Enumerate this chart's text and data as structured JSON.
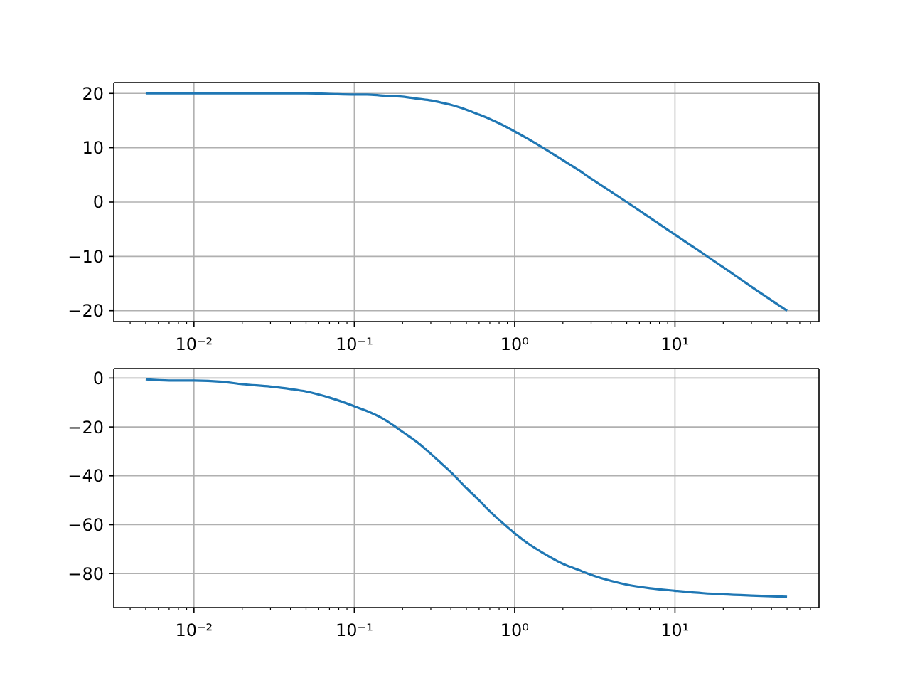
{
  "chart_data": [
    {
      "type": "line",
      "x": [
        0.005,
        0.007,
        0.01,
        0.015,
        0.02,
        0.03,
        0.04,
        0.05,
        0.07,
        0.1,
        0.12,
        0.15,
        0.2,
        0.25,
        0.3,
        0.35,
        0.4,
        0.5,
        0.6,
        0.7,
        0.8,
        1,
        1.2,
        1.5,
        2,
        2.5,
        3,
        4,
        5,
        7,
        10,
        15,
        20,
        30,
        50
      ],
      "series": [
        {
          "color": "#1f77b4",
          "values": [
            20,
            20,
            20,
            20,
            20,
            20,
            20,
            20,
            19.9,
            19.8,
            19.8,
            19.6,
            19.4,
            19,
            18.7,
            18.3,
            17.9,
            17,
            16.1,
            15.3,
            14.5,
            13,
            11.7,
            10,
            7.7,
            5.9,
            4.3,
            1.9,
            0,
            -2.9,
            -6,
            -9.5,
            -12,
            -15.6,
            -20
          ]
        }
      ],
      "log": "x",
      "xlim": [
        0.00316,
        79.1
      ],
      "xticks": [
        {
          "value": 0.004,
          "label": null
        },
        {
          "value": 0.005,
          "label": null
        },
        {
          "value": 0.006,
          "label": null
        },
        {
          "value": 0.007,
          "label": null
        },
        {
          "value": 0.008,
          "label": null
        },
        {
          "value": 0.009,
          "label": null
        },
        {
          "value": 0.01,
          "label": "10⁻²"
        },
        {
          "value": 0.02,
          "label": null
        },
        {
          "value": 0.03,
          "label": null
        },
        {
          "value": 0.04,
          "label": null
        },
        {
          "value": 0.05,
          "label": null
        },
        {
          "value": 0.06,
          "label": null
        },
        {
          "value": 0.07,
          "label": null
        },
        {
          "value": 0.08,
          "label": null
        },
        {
          "value": 0.09,
          "label": null
        },
        {
          "value": 0.1,
          "label": "10⁻¹"
        },
        {
          "value": 0.2,
          "label": null
        },
        {
          "value": 0.3,
          "label": null
        },
        {
          "value": 0.4,
          "label": null
        },
        {
          "value": 0.5,
          "label": null
        },
        {
          "value": 0.6,
          "label": null
        },
        {
          "value": 0.7,
          "label": null
        },
        {
          "value": 0.8,
          "label": null
        },
        {
          "value": 0.9,
          "label": null
        },
        {
          "value": 1,
          "label": "10⁰"
        },
        {
          "value": 2,
          "label": null
        },
        {
          "value": 3,
          "label": null
        },
        {
          "value": 4,
          "label": null
        },
        {
          "value": 5,
          "label": null
        },
        {
          "value": 6,
          "label": null
        },
        {
          "value": 7,
          "label": null
        },
        {
          "value": 8,
          "label": null
        },
        {
          "value": 9,
          "label": null
        },
        {
          "value": 10,
          "label": "10¹"
        },
        {
          "value": 20,
          "label": null
        },
        {
          "value": 30,
          "label": null
        },
        {
          "value": 40,
          "label": null
        },
        {
          "value": 50,
          "label": null
        },
        {
          "value": 60,
          "label": null
        },
        {
          "value": 70,
          "label": null
        }
      ],
      "ylim": [
        -22,
        22
      ],
      "yticks": [
        -20,
        -10,
        0,
        10,
        20
      ],
      "grid": true
    },
    {
      "type": "line",
      "x": [
        0.005,
        0.007,
        0.01,
        0.015,
        0.02,
        0.03,
        0.04,
        0.05,
        0.07,
        0.1,
        0.12,
        0.15,
        0.2,
        0.25,
        0.3,
        0.35,
        0.4,
        0.5,
        0.6,
        0.7,
        0.8,
        1,
        1.2,
        1.5,
        2,
        2.5,
        3,
        4,
        5,
        7,
        10,
        15,
        20,
        30,
        50
      ],
      "series": [
        {
          "color": "#1f77b4",
          "values": [
            -0.5,
            -1,
            -1,
            -1.5,
            -2.5,
            -3.5,
            -4.5,
            -5.5,
            -8,
            -11.5,
            -13.5,
            -16.5,
            -22,
            -26.5,
            -31,
            -35,
            -38.5,
            -45,
            -50,
            -54.5,
            -58,
            -63.5,
            -67.5,
            -71.5,
            -76,
            -78.5,
            -80.5,
            -83,
            -84.5,
            -86,
            -87,
            -88,
            -88.5,
            -89,
            -89.5
          ]
        }
      ],
      "log": "x",
      "xlim": [
        0.00316,
        79.1
      ],
      "xticks": [
        {
          "value": 0.004,
          "label": null
        },
        {
          "value": 0.005,
          "label": null
        },
        {
          "value": 0.006,
          "label": null
        },
        {
          "value": 0.007,
          "label": null
        },
        {
          "value": 0.008,
          "label": null
        },
        {
          "value": 0.009,
          "label": null
        },
        {
          "value": 0.01,
          "label": "10⁻²"
        },
        {
          "value": 0.02,
          "label": null
        },
        {
          "value": 0.03,
          "label": null
        },
        {
          "value": 0.04,
          "label": null
        },
        {
          "value": 0.05,
          "label": null
        },
        {
          "value": 0.06,
          "label": null
        },
        {
          "value": 0.07,
          "label": null
        },
        {
          "value": 0.08,
          "label": null
        },
        {
          "value": 0.09,
          "label": null
        },
        {
          "value": 0.1,
          "label": "10⁻¹"
        },
        {
          "value": 0.2,
          "label": null
        },
        {
          "value": 0.3,
          "label": null
        },
        {
          "value": 0.4,
          "label": null
        },
        {
          "value": 0.5,
          "label": null
        },
        {
          "value": 0.6,
          "label": null
        },
        {
          "value": 0.7,
          "label": null
        },
        {
          "value": 0.8,
          "label": null
        },
        {
          "value": 0.9,
          "label": null
        },
        {
          "value": 1,
          "label": "10⁰"
        },
        {
          "value": 2,
          "label": null
        },
        {
          "value": 3,
          "label": null
        },
        {
          "value": 4,
          "label": null
        },
        {
          "value": 5,
          "label": null
        },
        {
          "value": 6,
          "label": null
        },
        {
          "value": 7,
          "label": null
        },
        {
          "value": 8,
          "label": null
        },
        {
          "value": 9,
          "label": null
        },
        {
          "value": 10,
          "label": "10¹"
        },
        {
          "value": 20,
          "label": null
        },
        {
          "value": 30,
          "label": null
        },
        {
          "value": 40,
          "label": null
        },
        {
          "value": 50,
          "label": null
        },
        {
          "value": 60,
          "label": null
        },
        {
          "value": 70,
          "label": null
        }
      ],
      "ylim": [
        -93.9,
        3.9
      ],
      "yticks": [
        -80,
        -60,
        -40,
        -20,
        0
      ],
      "grid": true
    }
  ]
}
